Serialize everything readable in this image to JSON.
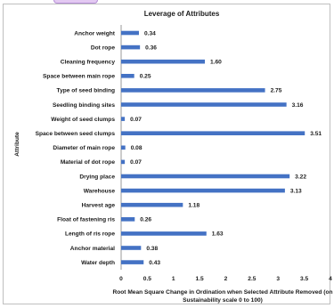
{
  "chart_data": {
    "type": "bar",
    "orientation": "horizontal",
    "title": "Leverage of Attributes",
    "xlabel_line1": "Root Mean Square Change in Ordination when Selected Attribute Removed (on",
    "xlabel_line2": "Sustainability scale 0 to 100)",
    "ylabel": "Attribute",
    "xlim": [
      0,
      4
    ],
    "x_ticks": [
      "0",
      "0.5",
      "1",
      "1.5",
      "2",
      "2.5",
      "3",
      "3.5",
      "4"
    ],
    "grid": false,
    "bar_color": "#4472c4",
    "categories": [
      "Anchor weight",
      "Dot rope",
      "Cleaning frequency",
      "Space between main rope",
      "Type of seed binding",
      "Seedling binding sites",
      "Weight of seed clumps",
      "Space between seed clumps",
      "Diameter of main rope",
      "Material of dot rope",
      "Drying place",
      "Warehouse",
      "Harvest age",
      "Float of fastening ris",
      "Length of ris rope",
      "Anchor material",
      "Water depth"
    ],
    "values": [
      0.34,
      0.36,
      1.6,
      0.25,
      2.75,
      3.16,
      0.07,
      3.51,
      0.08,
      0.07,
      3.22,
      3.13,
      1.18,
      0.26,
      1.63,
      0.38,
      0.43
    ],
    "value_labels": [
      "0.34",
      "0.36",
      "1.60",
      "0.25",
      "2.75",
      "3.16",
      "0.07",
      "3.51",
      "0.08",
      "0.07",
      "3.22",
      "3.13",
      "1.18",
      "0.26",
      "1.63",
      "0.38",
      "0.43"
    ]
  }
}
